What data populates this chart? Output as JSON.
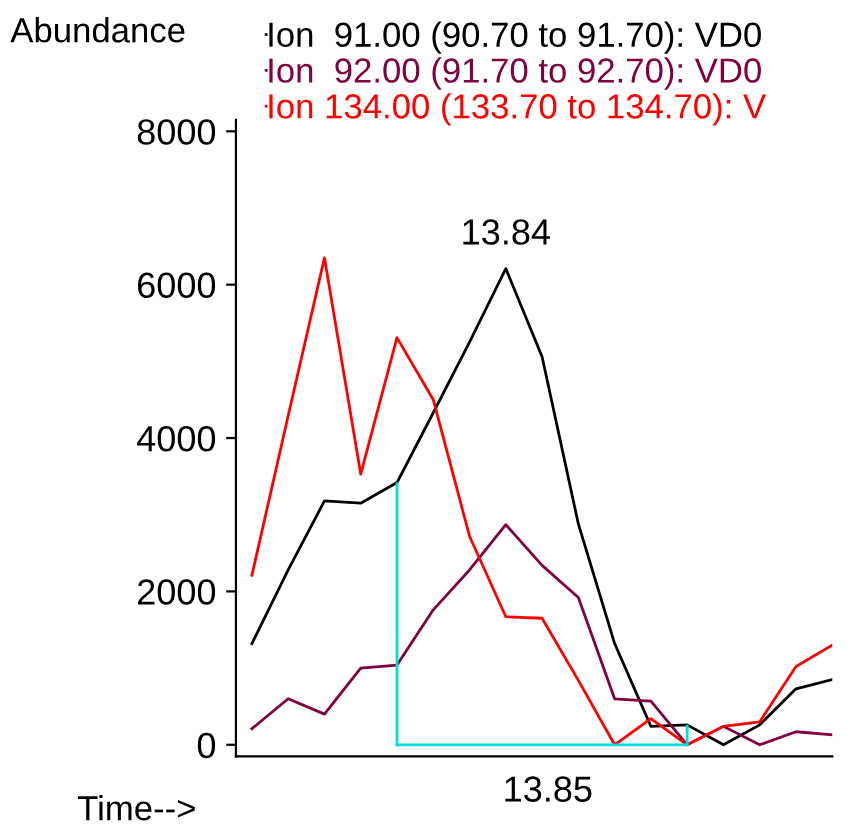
{
  "chart_data": {
    "type": "line",
    "ylabel": "Abundance",
    "xlabel": "Time-->",
    "categories": [
      null,
      null,
      null,
      null,
      null,
      null,
      null,
      null,
      null,
      null,
      null,
      null,
      null,
      null,
      null,
      null,
      null
    ],
    "series": [
      {
        "name": "Ion  91.00 (90.70 to 91.70): VD0",
        "color": "#000000",
        "values": [
          1320,
          2280,
          3180,
          3150,
          3420,
          4330,
          5250,
          6210,
          5060,
          2880,
          1320,
          240,
          260,
          0,
          260,
          730,
          850
        ]
      },
      {
        "name": "Ion  92.00 (91.70 to 92.70): VD0",
        "color": "#800040",
        "values": [
          210,
          600,
          400,
          1000,
          1040,
          1760,
          2280,
          2870,
          2340,
          1920,
          600,
          570,
          0,
          240,
          0,
          170,
          130
        ]
      },
      {
        "name": "Ion 134.00 (133.70 to 134.70): V",
        "color": "#ff0000",
        "values": [
          2210,
          4290,
          6350,
          3530,
          5310,
          4500,
          2720,
          1670,
          1650,
          840,
          0,
          340,
          0,
          240,
          300,
          1020,
          1300
        ]
      },
      {
        "color": "#00e0e0",
        "values": [
          null,
          null,
          null,
          null,
          0,
          0,
          0,
          0,
          0,
          0,
          0,
          0,
          0,
          null,
          null,
          null,
          null
        ],
        "errors": [
          null,
          null,
          null,
          null,
          [
            0,
            3420
          ],
          null,
          null,
          null,
          null,
          null,
          null,
          null,
          [
            0,
            260
          ],
          null,
          null,
          null,
          null
        ]
      }
    ],
    "annotations": [
      {
        "text": "13.84",
        "y": 6210
      },
      "13.85"
    ],
    "ylim": [
      -150,
      8150
    ],
    "yticks": [
      0,
      2000,
      4000,
      6000,
      8000
    ],
    "legend": "top"
  }
}
